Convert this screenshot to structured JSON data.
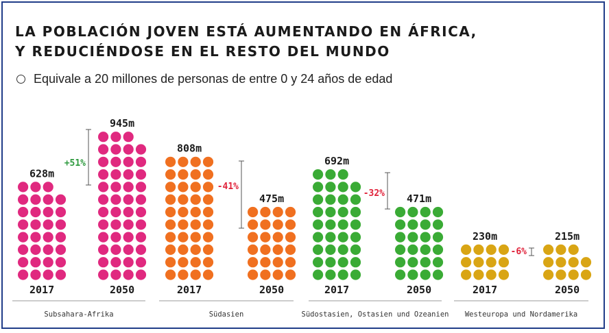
{
  "chart_data": {
    "type": "pictogram",
    "title_lines": [
      "LA POBLACIÓN JOVEN ESTÁ AUMENTANDO EN ÁFRICA,",
      "Y REDUCIÉNDOSE EN EL RESTO DEL MUNDO"
    ],
    "legend": "Equivale a 20 millones de personas de entre 0 y 24 años de edad",
    "unit_millions_per_dot": 20,
    "regions": [
      {
        "name": "Subsahara-Afrika",
        "color": "#e0297f",
        "change_label": "+51%",
        "change_color": "#2e9a3e",
        "years": [
          {
            "year": "2017",
            "value_label": "628m",
            "value": 628
          },
          {
            "year": "2050",
            "value_label": "945m",
            "value": 945
          }
        ]
      },
      {
        "name": "Südasien",
        "color": "#f07020",
        "change_label": "-41%",
        "change_color": "#e0223a",
        "years": [
          {
            "year": "2017",
            "value_label": "808m",
            "value": 808
          },
          {
            "year": "2050",
            "value_label": "475m",
            "value": 475
          }
        ]
      },
      {
        "name": "Südostasien, Ostasien und Ozeanien",
        "color": "#3aab35",
        "change_label": "-32%",
        "change_color": "#e0223a",
        "years": [
          {
            "year": "2017",
            "value_label": "692m",
            "value": 692
          },
          {
            "year": "2050",
            "value_label": "471m",
            "value": 471
          }
        ]
      },
      {
        "name": "Westeuropa und Nordamerika",
        "color": "#d9a514",
        "change_label": "-6%",
        "change_color": "#e0223a",
        "years": [
          {
            "year": "2017",
            "value_label": "230m",
            "value": 230
          },
          {
            "year": "2050",
            "value_label": "215m",
            "value": 215
          }
        ]
      }
    ]
  }
}
